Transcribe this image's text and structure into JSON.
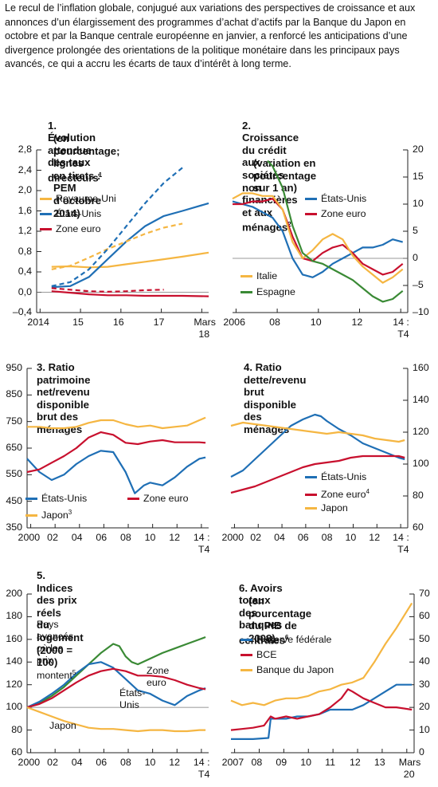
{
  "intro": "Le recul de l’inflation globale, conjugué aux variations des perspectives de croissance et aux annonces d’un élargissement des programmes d’achat d’actifs par la Banque du Japon en octobre et par la Banque centrale européenne en janvier, a renforcé les anticipations d’une divergence prolongée des orientations de la politique monétaire dans les principaux pays avancés, ce qui a accru les écarts de taux d’intérêt à long terme.",
  "colors": {
    "us": "#1f6fb5",
    "ez": "#c8102e",
    "uk": "#f5b642",
    "jp": "#f5b642",
    "it": "#f5b642",
    "es": "#3a8a35",
    "ax": "#222222"
  },
  "chart_data": [
    {
      "id": "p1",
      "type": "line",
      "title": "1. Évolution attendue\ndes taux directeurs",
      "title_sup": "1",
      "title2": "(en pourcentage; lignes\nen tirets : PEM\nd’octobre 2014)",
      "yticks": [
        "2,8",
        "2,4",
        "2,0",
        "1,6",
        "1,2",
        "0,8",
        "0,4",
        "0,0",
        "–0,4"
      ],
      "xticks": [
        "2014",
        "15",
        "16",
        "17",
        "Mars"
      ],
      "xtick_last2": "18",
      "ylim": [
        -0.4,
        2.8
      ],
      "xlim": [
        2013.6,
        2018.2
      ],
      "legend": [
        "Royaume-Uni",
        "États-Unis",
        "Zone euro"
      ],
      "series": [
        {
          "name": "Royaume-Uni",
          "dash": false,
          "x": [
            2014.0,
            2014.5,
            2015.0,
            2015.5,
            2016.0,
            2016.5,
            2017.0,
            2017.5,
            2018.2
          ],
          "y": [
            0.5,
            0.51,
            0.49,
            0.5,
            0.55,
            0.6,
            0.65,
            0.7,
            0.78
          ]
        },
        {
          "name": "États-Unis",
          "dash": false,
          "x": [
            2014.0,
            2014.5,
            2015.0,
            2015.5,
            2016.0,
            2016.5,
            2017.0,
            2017.5,
            2018.2
          ],
          "y": [
            0.1,
            0.12,
            0.3,
            0.65,
            1.0,
            1.3,
            1.5,
            1.6,
            1.75
          ]
        },
        {
          "name": "Zone euro",
          "dash": false,
          "x": [
            2014.0,
            2014.5,
            2015.0,
            2015.5,
            2016.0,
            2016.5,
            2017.0,
            2017.5,
            2018.2
          ],
          "y": [
            0.02,
            -0.01,
            -0.04,
            -0.06,
            -0.06,
            -0.07,
            -0.07,
            -0.07,
            -0.08
          ]
        },
        {
          "name": "Royaume-Uni",
          "dash": true,
          "x": [
            2014.0,
            2014.5,
            2015.0,
            2015.5,
            2016.0,
            2016.5,
            2017.0,
            2017.5
          ],
          "y": [
            0.45,
            0.52,
            0.68,
            0.85,
            1.0,
            1.15,
            1.27,
            1.35
          ]
        },
        {
          "name": "États-Unis",
          "dash": true,
          "x": [
            2014.0,
            2014.5,
            2015.0,
            2015.5,
            2016.0,
            2016.5,
            2017.0,
            2017.5
          ],
          "y": [
            0.12,
            0.2,
            0.45,
            0.85,
            1.3,
            1.75,
            2.15,
            2.45
          ]
        },
        {
          "name": "Zone euro",
          "dash": true,
          "x": [
            2014.0,
            2014.5,
            2015.0,
            2015.5,
            2016.0,
            2016.5,
            2017.0
          ],
          "y": [
            0.08,
            0.05,
            0.02,
            0.01,
            0.02,
            0.04,
            0.05
          ]
        }
      ]
    },
    {
      "id": "p2",
      "type": "line",
      "title": "2. Croissance du crédit\naux sociétés non financières\net aux ménages",
      "title_sup": "2",
      "title2": "(variation en pourcentage\nsur 1 an)",
      "yticks": [
        "20",
        "15",
        "10",
        "5",
        "0",
        "–5",
        "–10"
      ],
      "xticks": [
        "2006",
        "08",
        "10",
        "12",
        "14 :"
      ],
      "xtick_last2": "T4",
      "ylim": [
        -10,
        20
      ],
      "xlim": [
        2006.0,
        2014.75
      ],
      "legend": [
        "États-Unis",
        "Zone euro",
        "Italie",
        "Espagne"
      ],
      "series": [
        {
          "name": "États-Unis",
          "x": [
            2006.0,
            2006.5,
            2007.0,
            2007.5,
            2008.0,
            2008.5,
            2009.0,
            2009.5,
            2010.0,
            2010.5,
            2011.0,
            2011.5,
            2012.0,
            2012.5,
            2013.0,
            2013.5,
            2014.0,
            2014.5
          ],
          "y": [
            10.5,
            10,
            9.5,
            8.5,
            7.5,
            5,
            0,
            -3,
            -3.5,
            -2.5,
            -1,
            0,
            1,
            2,
            2,
            2.5,
            3.5,
            3
          ]
        },
        {
          "name": "Zone euro",
          "x": [
            2006.0,
            2006.5,
            2007.0,
            2007.5,
            2008.0,
            2008.5,
            2009.0,
            2009.5,
            2010.0,
            2010.5,
            2011.0,
            2011.5,
            2012.0,
            2012.5,
            2013.0,
            2013.5,
            2014.0,
            2014.5
          ],
          "y": [
            10,
            10,
            10.5,
            10.5,
            11,
            9,
            4,
            0,
            -0.5,
            1,
            2,
            2.5,
            1,
            -1,
            -2,
            -3,
            -2.5,
            -1
          ]
        },
        {
          "name": "Italie",
          "x": [
            2006.0,
            2006.5,
            2007.0,
            2007.5,
            2008.0,
            2008.5,
            2009.0,
            2009.5,
            2010.0,
            2010.5,
            2011.0,
            2011.5,
            2012.0,
            2012.5,
            2013.0,
            2013.5,
            2014.0,
            2014.5
          ],
          "y": [
            11,
            12,
            12,
            11.5,
            11.5,
            9,
            3,
            0,
            1.5,
            3.5,
            4.5,
            3.5,
            0.5,
            -1.5,
            -3,
            -4.5,
            -3.5,
            -2
          ]
        },
        {
          "name": "Espagne",
          "x": [
            2007.75,
            2008.0,
            2008.5,
            2009.0,
            2009.5,
            2010.0,
            2010.5,
            2011.0,
            2011.5,
            2012.0,
            2012.5,
            2013.0,
            2013.5,
            2014.0,
            2014.5
          ],
          "y": [
            18,
            17,
            13,
            6,
            1,
            -0.5,
            -1,
            -2,
            -3,
            -4,
            -5.5,
            -7,
            -8,
            -7.5,
            -6
          ]
        }
      ]
    },
    {
      "id": "p3",
      "type": "line",
      "title": "3. Ratio patrimoine\nnet/revenu disponible\nbrut des ménages",
      "yticks": [
        "950",
        "850",
        "750",
        "650",
        "550",
        "450",
        "350"
      ],
      "xticks": [
        "2000",
        "02",
        "04",
        "06",
        "08",
        "10",
        "12",
        "14 :"
      ],
      "xtick_last2": "T4",
      "ylim": [
        350,
        950
      ],
      "xlim": [
        2000.0,
        2014.75
      ],
      "legend": [
        "États-Unis",
        "Japon",
        "Zone euro"
      ],
      "legend_sup": {
        "Japon": "3"
      },
      "series": [
        {
          "name": "États-Unis",
          "x": [
            2000,
            2001,
            2002,
            2003,
            2004,
            2005,
            2006,
            2007,
            2008,
            2008.75,
            2009.5,
            2010,
            2011,
            2012,
            2013,
            2014,
            2014.5
          ],
          "y": [
            610,
            560,
            530,
            550,
            590,
            620,
            640,
            635,
            560,
            480,
            510,
            520,
            510,
            540,
            580,
            610,
            615
          ]
        },
        {
          "name": "Zone euro",
          "x": [
            2000,
            2001,
            2002,
            2003,
            2004,
            2005,
            2006,
            2007,
            2008,
            2009,
            2010,
            2011,
            2012,
            2013,
            2014,
            2014.5
          ],
          "y": [
            560,
            570,
            595,
            620,
            650,
            690,
            710,
            700,
            670,
            665,
            675,
            680,
            672,
            672,
            672,
            670
          ]
        },
        {
          "name": "Japon",
          "x": [
            2000,
            2001,
            2002,
            2003,
            2004,
            2005,
            2006,
            2007,
            2008,
            2009,
            2010,
            2011,
            2012,
            2013,
            2014,
            2014.5
          ],
          "y": [
            730,
            730,
            725,
            725,
            730,
            745,
            755,
            755,
            740,
            730,
            735,
            725,
            730,
            735,
            755,
            765
          ]
        }
      ]
    },
    {
      "id": "p4",
      "type": "line",
      "title": "4. Ratio dette/revenu brut\ndisponible des ménages",
      "yticks": [
        "160",
        "140",
        "120",
        "100",
        "80",
        "60"
      ],
      "xticks": [
        "2000",
        "02",
        "04",
        "06",
        "08",
        "10",
        "12",
        "14 :"
      ],
      "xtick_last2": "T4",
      "ylim": [
        60,
        160
      ],
      "xlim": [
        2000.0,
        2014.75
      ],
      "legend": [
        "États-Unis",
        "Zone euro",
        "Japon"
      ],
      "legend_sup": {
        "Zone euro": "4"
      },
      "series": [
        {
          "name": "États-Unis",
          "x": [
            2000,
            2001,
            2002,
            2003,
            2004,
            2005,
            2006,
            2007,
            2007.5,
            2008,
            2009,
            2010,
            2011,
            2012,
            2013,
            2014,
            2014.5
          ],
          "y": [
            92,
            96,
            103,
            110,
            117,
            124,
            128,
            131,
            130,
            127,
            122,
            118,
            113,
            110,
            107,
            104,
            103
          ]
        },
        {
          "name": "Zone euro",
          "x": [
            2000,
            2001,
            2002,
            2003,
            2004,
            2005,
            2006,
            2007,
            2008,
            2009,
            2010,
            2011,
            2012,
            2013,
            2014,
            2014.5
          ],
          "y": [
            82,
            84,
            86,
            89,
            92,
            95,
            98,
            100,
            101,
            102,
            104,
            105,
            105,
            105,
            105,
            104
          ]
        },
        {
          "name": "Japon",
          "x": [
            2000,
            2001,
            2002,
            2003,
            2004,
            2005,
            2006,
            2007,
            2008,
            2009,
            2010,
            2011,
            2012,
            2013,
            2014,
            2014.5
          ],
          "y": [
            124,
            126,
            125,
            124,
            123,
            122,
            121,
            120,
            119,
            120,
            119,
            118,
            116,
            115,
            114,
            115
          ]
        }
      ]
    },
    {
      "id": "p5",
      "type": "line",
      "title": "5. Indices des prix réels\ndu logement (2000 = 100)",
      "yticks": [
        "200",
        "180",
        "160",
        "140",
        "120",
        "100",
        "80",
        "60"
      ],
      "xticks": [
        "2000",
        "02",
        "04",
        "06",
        "08",
        "10",
        "12",
        "14 :"
      ],
      "xtick_last2": "T4",
      "ylim": [
        60,
        200
      ],
      "xlim": [
        2000.0,
        2014.75
      ],
      "annotations": [
        "Pays avancés où les\nprix montent",
        "Zone euro",
        "États-Unis",
        "Japon"
      ],
      "annotation_sup": "5",
      "series": [
        {
          "name": "Pays avancés où les prix montent",
          "x": [
            2000,
            2001,
            2002,
            2003,
            2004,
            2005,
            2006,
            2007,
            2007.5,
            2008,
            2008.5,
            2009,
            2010,
            2011,
            2012,
            2013,
            2014,
            2014.5
          ],
          "y": [
            100,
            104,
            110,
            118,
            128,
            138,
            148,
            156,
            154,
            145,
            140,
            138,
            143,
            148,
            152,
            156,
            160,
            162
          ]
        },
        {
          "name": "États-Unis",
          "x": [
            2000,
            2001,
            2002,
            2003,
            2004,
            2005,
            2006,
            2007,
            2008,
            2009,
            2010,
            2011,
            2012,
            2013,
            2014,
            2014.5
          ],
          "y": [
            100,
            105,
            112,
            120,
            130,
            138,
            140,
            135,
            125,
            115,
            112,
            106,
            102,
            110,
            115,
            117
          ]
        },
        {
          "name": "Zone euro",
          "x": [
            2000,
            2001,
            2002,
            2003,
            2004,
            2005,
            2006,
            2007,
            2008,
            2009,
            2010,
            2011,
            2012,
            2013,
            2014,
            2014.5
          ],
          "y": [
            100,
            103,
            108,
            115,
            122,
            128,
            132,
            134,
            132,
            128,
            128,
            127,
            124,
            120,
            117,
            116
          ]
        },
        {
          "name": "Japon",
          "x": [
            2000,
            2001,
            2002,
            2003,
            2004,
            2005,
            2006,
            2007,
            2008,
            2009,
            2010,
            2011,
            2012,
            2013,
            2014,
            2014.5
          ],
          "y": [
            100,
            96,
            92,
            88,
            85,
            82,
            81,
            81,
            80,
            79,
            80,
            80,
            79,
            79,
            80,
            80
          ]
        }
      ]
    },
    {
      "id": "p6",
      "type": "line",
      "title": "6. Avoirs totaux des banques\ncentrales",
      "title_sup": "6",
      "title2": "(en pourcentage\ndu PIB de 2008)",
      "yticks": [
        "70",
        "60",
        "50",
        "40",
        "30",
        "20",
        "10",
        "0"
      ],
      "xticks": [
        "2007",
        "08",
        "09",
        "10",
        "11",
        "12",
        "13",
        "Mars"
      ],
      "xtick_last2": "20",
      "ylim": [
        0,
        70
      ],
      "xlim": [
        2007.0,
        2015.3
      ],
      "legend": [
        "Réserve fédérale",
        "BCE",
        "Banque du Japon"
      ],
      "series": [
        {
          "name": "Réserve fédérale",
          "x": [
            2007,
            2007.5,
            2008,
            2008.7,
            2008.8,
            2009,
            2009.5,
            2010,
            2010.5,
            2011,
            2011.5,
            2012,
            2012.5,
            2013,
            2013.5,
            2014,
            2014.5,
            2015.2
          ],
          "y": [
            6,
            6,
            6,
            6.5,
            15,
            15,
            15,
            16,
            16,
            17,
            19,
            19,
            19,
            21,
            24,
            27,
            30,
            30
          ]
        },
        {
          "name": "BCE",
          "x": [
            2007,
            2007.5,
            2008,
            2008.5,
            2008.8,
            2009,
            2009.5,
            2010,
            2010.5,
            2011,
            2011.5,
            2012,
            2012.3,
            2012.5,
            2013,
            2013.5,
            2014,
            2014.5,
            2015.2
          ],
          "y": [
            10,
            10.5,
            11,
            12,
            16,
            15,
            16,
            15,
            16,
            17,
            20,
            24,
            28,
            27,
            24,
            22,
            20,
            20,
            19
          ]
        },
        {
          "name": "Banque du Japon",
          "x": [
            2007,
            2007.5,
            2008,
            2008.5,
            2009,
            2009.5,
            2010,
            2010.5,
            2011,
            2011.5,
            2012,
            2012.5,
            2013,
            2013.5,
            2014,
            2014.5,
            2015.2
          ],
          "y": [
            23,
            21,
            22,
            21,
            23,
            24,
            24,
            25,
            27,
            28,
            30,
            31,
            33,
            40,
            48,
            55,
            66
          ]
        }
      ]
    }
  ]
}
